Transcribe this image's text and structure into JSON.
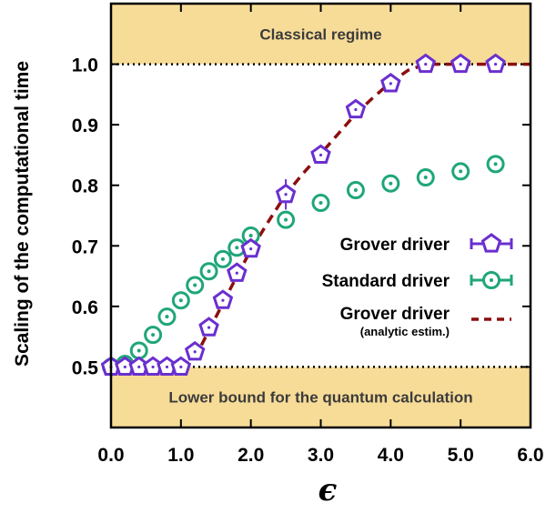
{
  "chart_data": {
    "type": "scatter",
    "xlabel": "ϵ",
    "ylabel": "Scaling of the computational time",
    "xlim": [
      0.0,
      6.0
    ],
    "ylim": [
      0.4,
      1.1
    ],
    "x_ticks": [
      "0.0",
      "1.0",
      "2.0",
      "3.0",
      "4.0",
      "5.0",
      "6.0"
    ],
    "y_ticks": [
      "0.5",
      "0.6",
      "0.7",
      "0.8",
      "0.9",
      "1.0"
    ],
    "x_tick_values": [
      0,
      1,
      2,
      3,
      4,
      5,
      6
    ],
    "y_tick_values": [
      0.5,
      0.6,
      0.7,
      0.8,
      0.9,
      1.0
    ],
    "bands": [
      {
        "label": "Classical regime",
        "y_from": 1.0,
        "y_to": 1.1,
        "color": "#f7dc98"
      },
      {
        "label": "Lower bound for the quantum calculation",
        "y_from": 0.4,
        "y_to": 0.5,
        "color": "#f7dc98"
      }
    ],
    "series": [
      {
        "name": "Grover driver",
        "marker": "pentagon",
        "color": "#6a2fcf",
        "x": [
          0.0,
          0.2,
          0.4,
          0.6,
          0.8,
          1.0,
          1.2,
          1.4,
          1.6,
          1.8,
          2.0,
          2.5,
          3.0,
          3.5,
          4.0,
          4.5,
          5.0,
          5.5
        ],
        "y": [
          0.5,
          0.5,
          0.5,
          0.5,
          0.5,
          0.5,
          0.525,
          0.565,
          0.61,
          0.655,
          0.695,
          0.785,
          0.85,
          0.925,
          0.968,
          1.0,
          1.0,
          1.0
        ],
        "err": [
          0,
          0,
          0,
          0,
          0,
          0,
          0,
          0.01,
          0.01,
          0.01,
          0.01,
          0.025,
          0.01,
          0.01,
          0.008,
          0,
          0,
          0
        ]
      },
      {
        "name": "Standard driver",
        "marker": "circle",
        "color": "#1fa67a",
        "x": [
          0.0,
          0.2,
          0.4,
          0.6,
          0.8,
          1.0,
          1.2,
          1.4,
          1.6,
          1.8,
          2.0,
          2.5,
          3.0,
          3.5,
          4.0,
          4.5,
          5.0,
          5.5
        ],
        "y": [
          0.5,
          0.505,
          0.527,
          0.553,
          0.583,
          0.61,
          0.635,
          0.658,
          0.678,
          0.697,
          0.717,
          0.743,
          0.771,
          0.792,
          0.803,
          0.813,
          0.823,
          0.835
        ]
      },
      {
        "name": "Grover driver",
        "name_sub": "(analytic estim.)",
        "line": "dashed",
        "color": "#8b0f0f",
        "x": [
          1.0,
          1.2,
          1.4,
          1.6,
          1.8,
          2.0,
          2.25,
          2.5,
          2.75,
          3.0,
          3.25,
          3.5,
          3.75,
          4.0,
          4.25,
          4.5,
          5.0,
          6.0
        ],
        "y": [
          0.5,
          0.515,
          0.56,
          0.605,
          0.65,
          0.693,
          0.74,
          0.785,
          0.82,
          0.852,
          0.885,
          0.918,
          0.945,
          0.97,
          0.99,
          1.0,
          1.0,
          1.0
        ]
      }
    ]
  }
}
